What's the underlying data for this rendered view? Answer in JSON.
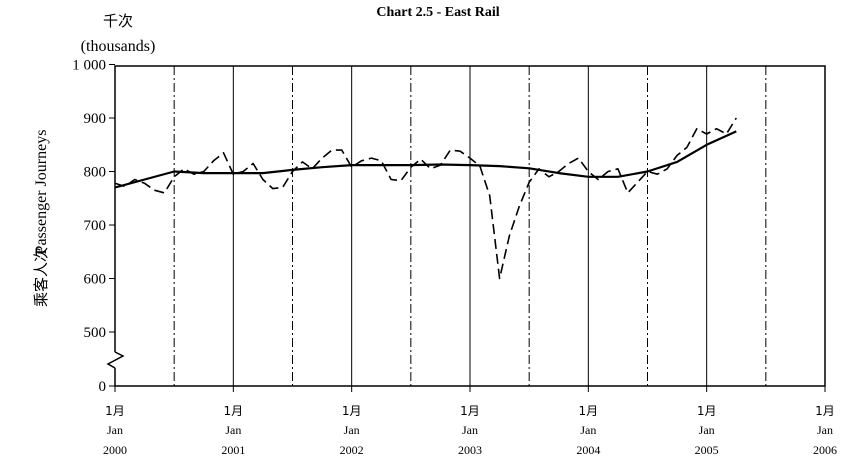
{
  "chart_data": {
    "type": "line",
    "title": "Chart 2.5 -  East Rail",
    "unit_label_cn": "千次",
    "unit_label_en": "(thousands)",
    "ylabel_cn": "乘客人次",
    "ylabel_en": "Passenger Journeys",
    "ylim": [
      0,
      1000
    ],
    "axis_break": true,
    "y_ticks": [
      {
        "value": 0,
        "label": "0"
      },
      {
        "value": 500,
        "label": "500"
      },
      {
        "value": 600,
        "label": "600"
      },
      {
        "value": 700,
        "label": "700"
      },
      {
        "value": 800,
        "label": "800"
      },
      {
        "value": 900,
        "label": "900"
      },
      {
        "value": 1000,
        "label": "1 000"
      }
    ],
    "x_range": [
      "2000-01",
      "2006-01"
    ],
    "x_ticks": [
      {
        "x": "2000-01",
        "month_cn": "1月",
        "month_en": "Jan",
        "year": "2000"
      },
      {
        "x": "2001-01",
        "month_cn": "1月",
        "month_en": "Jan",
        "year": "2001"
      },
      {
        "x": "2002-01",
        "month_cn": "1月",
        "month_en": "Jan",
        "year": "2002"
      },
      {
        "x": "2003-01",
        "month_cn": "1月",
        "month_en": "Jan",
        "year": "2003"
      },
      {
        "x": "2004-01",
        "month_cn": "1月",
        "month_en": "Jan",
        "year": "2004"
      },
      {
        "x": "2005-01",
        "month_cn": "1月",
        "month_en": "Jan",
        "year": "2005"
      },
      {
        "x": "2006-01",
        "month_cn": "1月",
        "month_en": "Jan",
        "year": "2006"
      }
    ],
    "grid": "vertical lines at each January (solid) and July (dash-dot)",
    "series": [
      {
        "style": "dashed",
        "points": [
          [
            "2000-01",
            778
          ],
          [
            "2000-02",
            772
          ],
          [
            "2000-03",
            785
          ],
          [
            "2000-04",
            778
          ],
          [
            "2000-05",
            765
          ],
          [
            "2000-06",
            760
          ],
          [
            "2000-07",
            790
          ],
          [
            "2000-08",
            805
          ],
          [
            "2000-09",
            795
          ],
          [
            "2000-10",
            800
          ],
          [
            "2000-11",
            820
          ],
          [
            "2000-12",
            835
          ],
          [
            "2001-01",
            795
          ],
          [
            "2001-02",
            800
          ],
          [
            "2001-03",
            815
          ],
          [
            "2001-04",
            785
          ],
          [
            "2001-05",
            768
          ],
          [
            "2001-06",
            770
          ],
          [
            "2001-07",
            800
          ],
          [
            "2001-08",
            818
          ],
          [
            "2001-09",
            805
          ],
          [
            "2001-10",
            825
          ],
          [
            "2001-11",
            840
          ],
          [
            "2001-12",
            840
          ],
          [
            "2002-01",
            808
          ],
          [
            "2002-02",
            820
          ],
          [
            "2002-03",
            825
          ],
          [
            "2002-04",
            820
          ],
          [
            "2002-05",
            785
          ],
          [
            "2002-06",
            783
          ],
          [
            "2002-07",
            808
          ],
          [
            "2002-08",
            823
          ],
          [
            "2002-09",
            805
          ],
          [
            "2002-10",
            812
          ],
          [
            "2002-11",
            840
          ],
          [
            "2002-12",
            838
          ],
          [
            "2003-01",
            825
          ],
          [
            "2003-02",
            810
          ],
          [
            "2003-03",
            755
          ],
          [
            "2003-04",
            600
          ],
          [
            "2003-05",
            680
          ],
          [
            "2003-06",
            735
          ],
          [
            "2003-07",
            780
          ],
          [
            "2003-08",
            805
          ],
          [
            "2003-09",
            790
          ],
          [
            "2003-10",
            800
          ],
          [
            "2003-11",
            815
          ],
          [
            "2003-12",
            825
          ],
          [
            "2004-01",
            800
          ],
          [
            "2004-02",
            785
          ],
          [
            "2004-03",
            800
          ],
          [
            "2004-04",
            805
          ],
          [
            "2004-05",
            760
          ],
          [
            "2004-06",
            780
          ],
          [
            "2004-07",
            800
          ],
          [
            "2004-08",
            795
          ],
          [
            "2004-09",
            805
          ],
          [
            "2004-10",
            830
          ],
          [
            "2004-11",
            845
          ],
          [
            "2004-12",
            880
          ],
          [
            "2005-01",
            870
          ],
          [
            "2005-02",
            880
          ],
          [
            "2005-03",
            870
          ],
          [
            "2005-04",
            900
          ]
        ]
      },
      {
        "style": "solid",
        "points": [
          [
            "2000-01",
            770
          ],
          [
            "2000-04",
            785
          ],
          [
            "2000-07",
            800
          ],
          [
            "2000-10",
            797
          ],
          [
            "2001-01",
            797
          ],
          [
            "2001-04",
            797
          ],
          [
            "2001-07",
            803
          ],
          [
            "2001-10",
            808
          ],
          [
            "2002-01",
            812
          ],
          [
            "2002-04",
            812
          ],
          [
            "2002-07",
            812
          ],
          [
            "2002-10",
            813
          ],
          [
            "2003-01",
            812
          ],
          [
            "2003-04",
            810
          ],
          [
            "2003-07",
            806
          ],
          [
            "2003-10",
            797
          ],
          [
            "2004-01",
            790
          ],
          [
            "2004-04",
            790
          ],
          [
            "2004-07",
            800
          ],
          [
            "2004-10",
            818
          ],
          [
            "2005-01",
            850
          ],
          [
            "2005-04",
            875
          ]
        ]
      }
    ]
  }
}
